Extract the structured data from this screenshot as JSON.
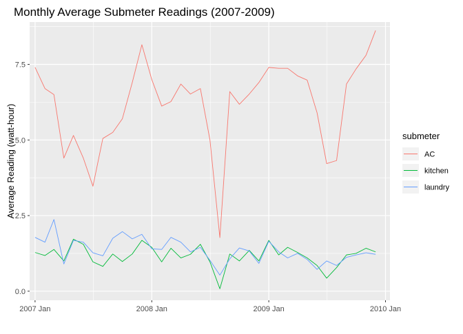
{
  "chart_data": {
    "type": "line",
    "title": "Monthly Average Submeter Readings (2007-2009)",
    "xlabel": "",
    "ylabel": "Average Reading (watt-hour)",
    "x": [
      "2007-01",
      "2007-02",
      "2007-03",
      "2007-04",
      "2007-05",
      "2007-06",
      "2007-07",
      "2007-08",
      "2007-09",
      "2007-10",
      "2007-11",
      "2007-12",
      "2008-01",
      "2008-02",
      "2008-03",
      "2008-04",
      "2008-05",
      "2008-06",
      "2008-07",
      "2008-08",
      "2008-09",
      "2008-10",
      "2008-11",
      "2008-12",
      "2009-01",
      "2009-02",
      "2009-03",
      "2009-04",
      "2009-05",
      "2009-06",
      "2009-07",
      "2009-08",
      "2009-09",
      "2009-10",
      "2009-11",
      "2009-12"
    ],
    "xlim": [
      "2006-12-15",
      "2010-01-15"
    ],
    "x_ticks": [
      {
        "date": "2007-01",
        "label": "2007 Jan"
      },
      {
        "date": "2008-01",
        "label": "2008 Jan"
      },
      {
        "date": "2009-01",
        "label": "2009 Jan"
      },
      {
        "date": "2010-01",
        "label": "2010 Jan"
      }
    ],
    "ylim": [
      -0.3,
      8.9
    ],
    "y_ticks": [
      {
        "value": 0.0,
        "label": "0.0"
      },
      {
        "value": 2.5,
        "label": "2.5"
      },
      {
        "value": 5.0,
        "label": "5.0"
      },
      {
        "value": 7.5,
        "label": "7.5"
      }
    ],
    "grid": true,
    "legend": {
      "title": "submeter",
      "placement": "right"
    },
    "series": [
      {
        "name": "AC",
        "color": "#F8766D",
        "values": [
          7.4,
          6.7,
          6.5,
          4.4,
          5.15,
          4.4,
          3.47,
          5.05,
          5.25,
          5.7,
          6.9,
          8.15,
          7.0,
          6.12,
          6.27,
          6.85,
          6.52,
          6.7,
          5.0,
          1.77,
          6.6,
          6.18,
          6.52,
          6.9,
          7.4,
          7.37,
          7.37,
          7.12,
          6.98,
          5.9,
          4.22,
          4.32,
          6.85,
          7.35,
          7.8,
          8.62
        ]
      },
      {
        "name": "kitchen",
        "color": "#00BA38",
        "values": [
          1.28,
          1.18,
          1.38,
          1.0,
          1.72,
          1.55,
          0.97,
          0.82,
          1.23,
          0.98,
          1.23,
          1.68,
          1.45,
          0.97,
          1.42,
          1.1,
          1.22,
          1.55,
          0.97,
          0.08,
          1.23,
          1.0,
          1.35,
          1.0,
          1.68,
          1.2,
          1.45,
          1.28,
          1.1,
          0.85,
          0.43,
          0.78,
          1.2,
          1.25,
          1.42,
          1.3
        ]
      },
      {
        "name": "laundry",
        "color": "#619CFF",
        "values": [
          1.78,
          1.62,
          2.37,
          0.9,
          1.68,
          1.62,
          1.27,
          1.17,
          1.75,
          1.97,
          1.73,
          1.88,
          1.4,
          1.38,
          1.78,
          1.62,
          1.3,
          1.45,
          1.02,
          0.53,
          1.07,
          1.43,
          1.33,
          0.92,
          1.65,
          1.3,
          1.1,
          1.25,
          1.05,
          0.72,
          1.0,
          0.85,
          1.12,
          1.2,
          1.27,
          1.22
        ]
      }
    ]
  }
}
